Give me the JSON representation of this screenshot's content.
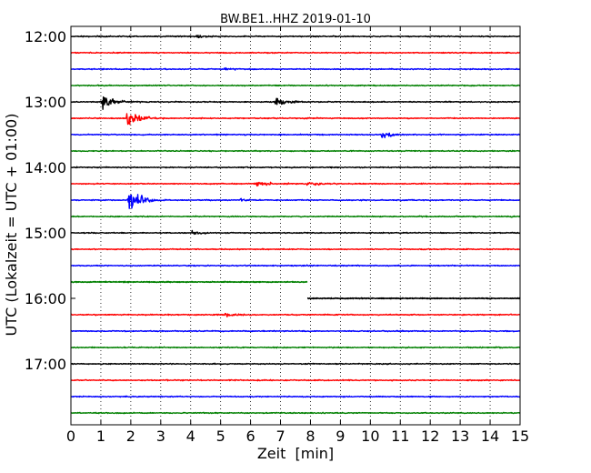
{
  "chart_data": {
    "type": "line",
    "title": "BW.BE1..HHZ 2019-01-10",
    "xlabel": "Zeit  [min]",
    "ylabel": "UTC (Lokalzeit = UTC + 01:00)",
    "xlim": [
      0,
      15
    ],
    "x_ticks": [
      0,
      1,
      2,
      3,
      4,
      5,
      6,
      7,
      8,
      9,
      10,
      11,
      12,
      13,
      14,
      15
    ],
    "x_tick_labels": [
      "0",
      "1",
      "2",
      "3",
      "4",
      "5",
      "6",
      "7",
      "8",
      "9",
      "10",
      "11",
      "12",
      "13",
      "14",
      "15"
    ],
    "y_ticks": [
      "12:00",
      "13:00",
      "14:00",
      "15:00",
      "16:00",
      "17:00"
    ],
    "grid": "vertical dotted lines at each minute",
    "trace_colors": [
      "#000000",
      "#ff0000",
      "#0000ff",
      "#008000"
    ],
    "traces": [
      {
        "start": "12:00",
        "color": "#000000",
        "events": [
          {
            "t": 4.2,
            "amp": 0.25
          }
        ]
      },
      {
        "start": "12:15",
        "color": "#ff0000",
        "events": []
      },
      {
        "start": "12:30",
        "color": "#0000ff",
        "events": [
          {
            "t": 5.0,
            "amp": 0.2
          }
        ]
      },
      {
        "start": "12:45",
        "color": "#008000",
        "events": []
      },
      {
        "start": "13:00",
        "color": "#000000",
        "events": [
          {
            "t": 1.05,
            "amp": 1.1
          },
          {
            "t": 6.85,
            "amp": 0.75
          }
        ]
      },
      {
        "start": "13:15",
        "color": "#ff0000",
        "events": [
          {
            "t": 1.9,
            "amp": 1.3
          }
        ]
      },
      {
        "start": "13:30",
        "color": "#0000ff",
        "events": [
          {
            "t": 10.4,
            "amp": 0.5
          }
        ]
      },
      {
        "start": "13:45",
        "color": "#008000",
        "events": []
      },
      {
        "start": "14:00",
        "color": "#000000",
        "events": []
      },
      {
        "start": "14:15",
        "color": "#ff0000",
        "events": [
          {
            "t": 6.2,
            "amp": 0.45
          },
          {
            "t": 7.9,
            "amp": 0.35
          }
        ]
      },
      {
        "start": "14:30",
        "color": "#0000ff",
        "events": [
          {
            "t": 1.95,
            "amp": 1.7
          },
          {
            "t": 5.65,
            "amp": 0.25
          }
        ]
      },
      {
        "start": "14:45",
        "color": "#008000",
        "events": []
      },
      {
        "start": "15:00",
        "color": "#000000",
        "events": [
          {
            "t": 4.05,
            "amp": 0.25
          }
        ]
      },
      {
        "start": "15:15",
        "color": "#ff0000",
        "events": []
      },
      {
        "start": "15:30",
        "color": "#0000ff",
        "events": []
      },
      {
        "start": "15:45",
        "color": "#008000",
        "events": [],
        "data_end": 7.9
      },
      {
        "start": "16:00",
        "color": "#000000",
        "events": [],
        "data_start": 7.9
      },
      {
        "start": "16:15",
        "color": "#ff0000",
        "events": [
          {
            "t": 5.15,
            "amp": 0.3
          }
        ]
      },
      {
        "start": "16:30",
        "color": "#0000ff",
        "events": []
      },
      {
        "start": "16:45",
        "color": "#008000",
        "events": []
      },
      {
        "start": "17:00",
        "color": "#000000",
        "events": []
      },
      {
        "start": "17:15",
        "color": "#ff0000",
        "events": []
      },
      {
        "start": "17:30",
        "color": "#0000ff",
        "events": []
      },
      {
        "start": "17:45",
        "color": "#008000",
        "events": []
      }
    ]
  }
}
